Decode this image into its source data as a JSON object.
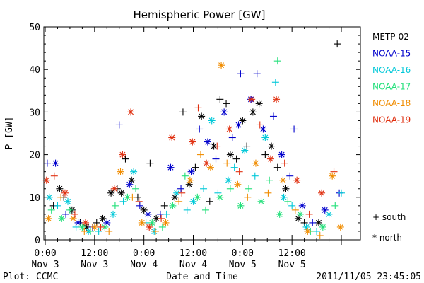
{
  "chart_data": {
    "type": "scatter",
    "title": "Hemispheric Power [GW]",
    "ylabel": "P [GW]",
    "xlabel": "Date and Time",
    "footer_left": "Plot: CCMC",
    "footer_right": "2011/11/05 23:45:05",
    "ylim": [
      0,
      50
    ],
    "yticks": [
      0,
      10,
      20,
      30,
      40,
      50
    ],
    "xlim_hours": [
      0,
      72
    ],
    "xticks": [
      {
        "hour": 0,
        "time": "0:00",
        "date": "Nov 3"
      },
      {
        "hour": 12,
        "time": "12:00",
        "date": "Nov 3"
      },
      {
        "hour": 24,
        "time": "0:00",
        "date": "Nov 4"
      },
      {
        "hour": 36,
        "time": "12:00",
        "date": "Nov 4"
      },
      {
        "hour": 48,
        "time": "0:00",
        "date": "Nov 5"
      },
      {
        "hour": 60,
        "time": "12:00",
        "date": "Nov 5"
      }
    ],
    "marker_legend": [
      {
        "symbol": "+",
        "label": "south"
      },
      {
        "symbol": "*",
        "label": "north"
      }
    ],
    "series": [
      {
        "name": "METP-02",
        "color": "#000000",
        "points": [
          {
            "x": 2.0,
            "y": 8,
            "m": "+"
          },
          {
            "x": 3.5,
            "y": 12,
            "m": "*"
          },
          {
            "x": 4.5,
            "y": 10,
            "m": "+"
          },
          {
            "x": 6.5,
            "y": 7,
            "m": "*"
          },
          {
            "x": 8.5,
            "y": 4,
            "m": "+"
          },
          {
            "x": 10.0,
            "y": 3,
            "m": "*"
          },
          {
            "x": 12.5,
            "y": 4,
            "m": "+"
          },
          {
            "x": 14.0,
            "y": 5,
            "m": "*"
          },
          {
            "x": 16.0,
            "y": 11,
            "m": "*"
          },
          {
            "x": 17.5,
            "y": 12,
            "m": "+"
          },
          {
            "x": 18.5,
            "y": 11,
            "m": "*"
          },
          {
            "x": 19.5,
            "y": 19,
            "m": "+"
          },
          {
            "x": 21.0,
            "y": 14,
            "m": "*"
          },
          {
            "x": 22.5,
            "y": 10,
            "m": "+"
          },
          {
            "x": 24.0,
            "y": 7,
            "m": "*"
          },
          {
            "x": 25.5,
            "y": 18,
            "m": "+"
          },
          {
            "x": 27.0,
            "y": 5,
            "m": "*"
          },
          {
            "x": 29.0,
            "y": 8,
            "m": "+"
          },
          {
            "x": 31.5,
            "y": 10,
            "m": "*"
          },
          {
            "x": 33.5,
            "y": 30,
            "m": "+"
          },
          {
            "x": 35.0,
            "y": 13,
            "m": "*"
          },
          {
            "x": 36.5,
            "y": 17,
            "m": "+"
          },
          {
            "x": 38.0,
            "y": 29,
            "m": "*"
          },
          {
            "x": 40.0,
            "y": 9,
            "m": "+"
          },
          {
            "x": 41.0,
            "y": 22,
            "m": "*"
          },
          {
            "x": 42.5,
            "y": 33,
            "m": "+"
          },
          {
            "x": 44.0,
            "y": 32,
            "m": "+"
          },
          {
            "x": 45.0,
            "y": 20,
            "m": "*"
          },
          {
            "x": 46.5,
            "y": 19,
            "m": "+"
          },
          {
            "x": 48.0,
            "y": 28,
            "m": "*"
          },
          {
            "x": 49.0,
            "y": 22,
            "m": "+"
          },
          {
            "x": 50.5,
            "y": 30,
            "m": "*"
          },
          {
            "x": 52.0,
            "y": 32,
            "m": "*"
          },
          {
            "x": 53.5,
            "y": 20,
            "m": "+"
          },
          {
            "x": 55.0,
            "y": 22,
            "m": "*"
          },
          {
            "x": 56.5,
            "y": 17,
            "m": "+"
          },
          {
            "x": 58.5,
            "y": 12,
            "m": "*"
          },
          {
            "x": 61.5,
            "y": 5,
            "m": "*"
          },
          {
            "x": 63.0,
            "y": 4,
            "m": "+"
          },
          {
            "x": 66.5,
            "y": 4,
            "m": "*"
          },
          {
            "x": 71.0,
            "y": 46,
            "m": "+"
          }
        ]
      },
      {
        "name": "NOAA-15",
        "color": "#0000cc",
        "points": [
          {
            "x": 0.5,
            "y": 18,
            "m": "+"
          },
          {
            "x": 2.5,
            "y": 18,
            "m": "*"
          },
          {
            "x": 5.0,
            "y": 6,
            "m": "+"
          },
          {
            "x": 8.0,
            "y": 4,
            "m": "*"
          },
          {
            "x": 11.5,
            "y": 3,
            "m": "+"
          },
          {
            "x": 15.0,
            "y": 4,
            "m": "*"
          },
          {
            "x": 18.0,
            "y": 27,
            "m": "+"
          },
          {
            "x": 20.5,
            "y": 13,
            "m": "*"
          },
          {
            "x": 23.0,
            "y": 8,
            "m": "+"
          },
          {
            "x": 25.0,
            "y": 6,
            "m": "*"
          },
          {
            "x": 28.0,
            "y": 6,
            "m": "+"
          },
          {
            "x": 30.5,
            "y": 17,
            "m": "*"
          },
          {
            "x": 33.0,
            "y": 12,
            "m": "+"
          },
          {
            "x": 35.5,
            "y": 16,
            "m": "*"
          },
          {
            "x": 37.5,
            "y": 26,
            "m": "+"
          },
          {
            "x": 39.5,
            "y": 23,
            "m": "*"
          },
          {
            "x": 41.5,
            "y": 19,
            "m": "+"
          },
          {
            "x": 43.5,
            "y": 30,
            "m": "*"
          },
          {
            "x": 45.5,
            "y": 24,
            "m": "+"
          },
          {
            "x": 47.0,
            "y": 27,
            "m": "*"
          },
          {
            "x": 47.5,
            "y": 39,
            "m": "+"
          },
          {
            "x": 50.0,
            "y": 33,
            "m": "*"
          },
          {
            "x": 51.5,
            "y": 39,
            "m": "+"
          },
          {
            "x": 53.0,
            "y": 26,
            "m": "*"
          },
          {
            "x": 55.5,
            "y": 29,
            "m": "+"
          },
          {
            "x": 57.5,
            "y": 20,
            "m": "*"
          },
          {
            "x": 59.5,
            "y": 15,
            "m": "+"
          },
          {
            "x": 60.5,
            "y": 26,
            "m": "+"
          },
          {
            "x": 62.5,
            "y": 8,
            "m": "*"
          },
          {
            "x": 65.0,
            "y": 4,
            "m": "+"
          },
          {
            "x": 68.0,
            "y": 7,
            "m": "*"
          },
          {
            "x": 71.5,
            "y": 11,
            "m": "+"
          }
        ]
      },
      {
        "name": "NOAA-16",
        "color": "#00c8d8",
        "points": [
          {
            "x": 1.0,
            "y": 10,
            "m": "*"
          },
          {
            "x": 3.0,
            "y": 8,
            "m": "+"
          },
          {
            "x": 5.5,
            "y": 9,
            "m": "*"
          },
          {
            "x": 7.5,
            "y": 3,
            "m": "+"
          },
          {
            "x": 10.5,
            "y": 2,
            "m": "*"
          },
          {
            "x": 13.0,
            "y": 2,
            "m": "+"
          },
          {
            "x": 16.5,
            "y": 6,
            "m": "*"
          },
          {
            "x": 19.0,
            "y": 9,
            "m": "+"
          },
          {
            "x": 21.5,
            "y": 16,
            "m": "*"
          },
          {
            "x": 24.5,
            "y": 4,
            "m": "+"
          },
          {
            "x": 26.5,
            "y": 2,
            "m": "*"
          },
          {
            "x": 29.5,
            "y": 6,
            "m": "+"
          },
          {
            "x": 32.0,
            "y": 11,
            "m": "*"
          },
          {
            "x": 34.5,
            "y": 7,
            "m": "+"
          },
          {
            "x": 36.0,
            "y": 9,
            "m": "*"
          },
          {
            "x": 38.5,
            "y": 12,
            "m": "+"
          },
          {
            "x": 40.5,
            "y": 28,
            "m": "*"
          },
          {
            "x": 42.0,
            "y": 11,
            "m": "+"
          },
          {
            "x": 44.5,
            "y": 14,
            "m": "*"
          },
          {
            "x": 46.0,
            "y": 17,
            "m": "+"
          },
          {
            "x": 48.5,
            "y": 21,
            "m": "*"
          },
          {
            "x": 51.0,
            "y": 15,
            "m": "+"
          },
          {
            "x": 53.5,
            "y": 24,
            "m": "*"
          },
          {
            "x": 56.0,
            "y": 37,
            "m": "+"
          },
          {
            "x": 58.0,
            "y": 10,
            "m": "*"
          },
          {
            "x": 60.0,
            "y": 8,
            "m": "+"
          },
          {
            "x": 63.5,
            "y": 3,
            "m": "*"
          },
          {
            "x": 66.0,
            "y": 2,
            "m": "+"
          },
          {
            "x": 69.0,
            "y": 6,
            "m": "*"
          },
          {
            "x": 72.0,
            "y": 11,
            "m": "+"
          }
        ]
      },
      {
        "name": "NOAA-17",
        "color": "#22e07a",
        "points": [
          {
            "x": 1.5,
            "y": 7,
            "m": "+"
          },
          {
            "x": 4.0,
            "y": 5,
            "m": "*"
          },
          {
            "x": 6.0,
            "y": 7,
            "m": "+"
          },
          {
            "x": 9.0,
            "y": 3,
            "m": "*"
          },
          {
            "x": 11.0,
            "y": 2,
            "m": "+"
          },
          {
            "x": 14.5,
            "y": 3,
            "m": "*"
          },
          {
            "x": 17.0,
            "y": 8,
            "m": "+"
          },
          {
            "x": 20.0,
            "y": 10,
            "m": "*"
          },
          {
            "x": 22.0,
            "y": 12,
            "m": "+"
          },
          {
            "x": 26.0,
            "y": 4,
            "m": "*"
          },
          {
            "x": 28.5,
            "y": 3,
            "m": "+"
          },
          {
            "x": 31.0,
            "y": 8,
            "m": "*"
          },
          {
            "x": 34.0,
            "y": 15,
            "m": "+"
          },
          {
            "x": 37.0,
            "y": 10,
            "m": "*"
          },
          {
            "x": 39.0,
            "y": 7,
            "m": "+"
          },
          {
            "x": 42.5,
            "y": 10,
            "m": "*"
          },
          {
            "x": 45.0,
            "y": 12,
            "m": "+"
          },
          {
            "x": 47.5,
            "y": 8,
            "m": "*"
          },
          {
            "x": 49.5,
            "y": 12,
            "m": "+"
          },
          {
            "x": 52.5,
            "y": 9,
            "m": "*"
          },
          {
            "x": 54.5,
            "y": 14,
            "m": "+"
          },
          {
            "x": 56.5,
            "y": 42,
            "m": "+"
          },
          {
            "x": 57.0,
            "y": 6,
            "m": "*"
          },
          {
            "x": 59.0,
            "y": 9,
            "m": "+"
          },
          {
            "x": 62.0,
            "y": 6,
            "m": "*"
          },
          {
            "x": 64.5,
            "y": 2,
            "m": "+"
          },
          {
            "x": 67.5,
            "y": 3,
            "m": "*"
          },
          {
            "x": 70.5,
            "y": 8,
            "m": "+"
          }
        ]
      },
      {
        "name": "NOAA-18",
        "color": "#f08c00",
        "points": [
          {
            "x": 0.8,
            "y": 5,
            "m": "*"
          },
          {
            "x": 3.8,
            "y": 10,
            "m": "+"
          },
          {
            "x": 6.8,
            "y": 5,
            "m": "*"
          },
          {
            "x": 9.5,
            "y": 2,
            "m": "+"
          },
          {
            "x": 12.0,
            "y": 3,
            "m": "*"
          },
          {
            "x": 15.5,
            "y": 2,
            "m": "+"
          },
          {
            "x": 18.3,
            "y": 16,
            "m": "*"
          },
          {
            "x": 21.2,
            "y": 10,
            "m": "+"
          },
          {
            "x": 23.5,
            "y": 4,
            "m": "*"
          },
          {
            "x": 26.8,
            "y": 2,
            "m": "+"
          },
          {
            "x": 29.3,
            "y": 4,
            "m": "*"
          },
          {
            "x": 32.5,
            "y": 9,
            "m": "+"
          },
          {
            "x": 35.2,
            "y": 14,
            "m": "*"
          },
          {
            "x": 37.8,
            "y": 20,
            "m": "+"
          },
          {
            "x": 40.2,
            "y": 17,
            "m": "*"
          },
          {
            "x": 42.8,
            "y": 41,
            "m": "*"
          },
          {
            "x": 44.2,
            "y": 18,
            "m": "+"
          },
          {
            "x": 46.8,
            "y": 13,
            "m": "*"
          },
          {
            "x": 49.2,
            "y": 10,
            "m": "+"
          },
          {
            "x": 51.2,
            "y": 18,
            "m": "*"
          },
          {
            "x": 54.2,
            "y": 11,
            "m": "+"
          },
          {
            "x": 57.8,
            "y": 14,
            "m": "*"
          },
          {
            "x": 60.8,
            "y": 7,
            "m": "+"
          },
          {
            "x": 63.8,
            "y": 2,
            "m": "*"
          },
          {
            "x": 66.8,
            "y": 1,
            "m": "+"
          },
          {
            "x": 69.8,
            "y": 15,
            "m": "*"
          },
          {
            "x": 71.8,
            "y": 3,
            "m": "*"
          }
        ]
      },
      {
        "name": "NOAA-19",
        "color": "#e03010",
        "points": [
          {
            "x": 0.3,
            "y": 14,
            "m": "*"
          },
          {
            "x": 2.2,
            "y": 15,
            "m": "+"
          },
          {
            "x": 4.8,
            "y": 11,
            "m": "*"
          },
          {
            "x": 7.2,
            "y": 6,
            "m": "+"
          },
          {
            "x": 9.8,
            "y": 4,
            "m": "*"
          },
          {
            "x": 13.5,
            "y": 3,
            "m": "+"
          },
          {
            "x": 16.8,
            "y": 12,
            "m": "*"
          },
          {
            "x": 18.8,
            "y": 20,
            "m": "*"
          },
          {
            "x": 20.8,
            "y": 30,
            "m": "*"
          },
          {
            "x": 22.8,
            "y": 9,
            "m": "+"
          },
          {
            "x": 25.3,
            "y": 3,
            "m": "*"
          },
          {
            "x": 28.2,
            "y": 5,
            "m": "+"
          },
          {
            "x": 30.8,
            "y": 24,
            "m": "*"
          },
          {
            "x": 33.2,
            "y": 11,
            "m": "+"
          },
          {
            "x": 35.8,
            "y": 23,
            "m": "*"
          },
          {
            "x": 37.2,
            "y": 31,
            "m": "+"
          },
          {
            "x": 39.2,
            "y": 18,
            "m": "*"
          },
          {
            "x": 41.8,
            "y": 22,
            "m": "+"
          },
          {
            "x": 44.8,
            "y": 26,
            "m": "*"
          },
          {
            "x": 47.2,
            "y": 16,
            "m": "+"
          },
          {
            "x": 50.2,
            "y": 33,
            "m": "*"
          },
          {
            "x": 52.2,
            "y": 27,
            "m": "+"
          },
          {
            "x": 54.8,
            "y": 19,
            "m": "*"
          },
          {
            "x": 56.2,
            "y": 33,
            "m": "*"
          },
          {
            "x": 58.2,
            "y": 18,
            "m": "+"
          },
          {
            "x": 61.2,
            "y": 14,
            "m": "*"
          },
          {
            "x": 64.2,
            "y": 6,
            "m": "+"
          },
          {
            "x": 67.2,
            "y": 11,
            "m": "*"
          },
          {
            "x": 70.2,
            "y": 16,
            "m": "+"
          }
        ]
      }
    ]
  }
}
